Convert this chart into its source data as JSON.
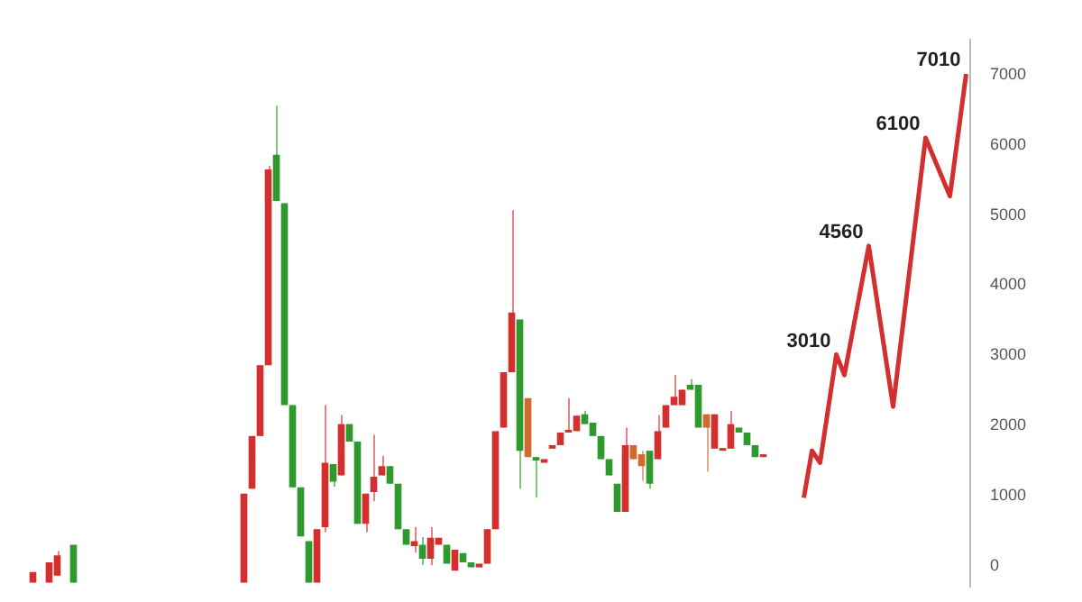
{
  "chart_data": {
    "type": "candlestick",
    "tick_labels": "y",
    "grid": false,
    "legend": false,
    "ylim": [
      -300,
      7500
    ],
    "yticks": [
      0,
      1000,
      2000,
      3000,
      4000,
      5000,
      6000,
      7000
    ],
    "categories": [
      null,
      null,
      null,
      null,
      null,
      null,
      null,
      null,
      null,
      null,
      null,
      null,
      null,
      null,
      null,
      null,
      null,
      null,
      null,
      null,
      null,
      null,
      null,
      null,
      null,
      null,
      null,
      null,
      null,
      null,
      null,
      null,
      null,
      null,
      null,
      null,
      null,
      null,
      null,
      null,
      null,
      null,
      null,
      null,
      null,
      null,
      null,
      null,
      null,
      null,
      null,
      null,
      null,
      null,
      null,
      null,
      null,
      null,
      null,
      null,
      null,
      null,
      null,
      null,
      null,
      null,
      null,
      null,
      null,
      null,
      null,
      null,
      null,
      null,
      null,
      null,
      null,
      null,
      null,
      null,
      null,
      null,
      null,
      null,
      null,
      null,
      null,
      null,
      null,
      null,
      null,
      null,
      null,
      null,
      null,
      null,
      null,
      null,
      null,
      null,
      null,
      null,
      null,
      null,
      null,
      null,
      null,
      null,
      null,
      null,
      null,
      null,
      null,
      null,
      null,
      null
    ],
    "ohlc": [
      [
        -240,
        -90,
        -240,
        -90
      ],
      null,
      [
        -240,
        50,
        -240,
        50
      ],
      [
        -140,
        210,
        -140,
        150
      ],
      null,
      [
        300,
        300,
        -240,
        -240
      ],
      null,
      null,
      null,
      null,
      null,
      null,
      null,
      null,
      null,
      null,
      null,
      null,
      null,
      null,
      null,
      null,
      null,
      null,
      null,
      null,
      [
        -240,
        1030,
        -240,
        1030
      ],
      [
        1100,
        1850,
        1100,
        1850
      ],
      [
        1850,
        2860,
        1850,
        2860
      ],
      [
        2860,
        5700,
        2860,
        5650
      ],
      [
        5860,
        6560,
        5200,
        5200
      ],
      [
        5170,
        5170,
        2290,
        2290
      ],
      [
        2290,
        2290,
        1120,
        1120
      ],
      [
        1120,
        1120,
        420,
        420
      ],
      [
        350,
        350,
        -240,
        -240
      ],
      [
        -240,
        520,
        -240,
        520
      ],
      [
        550,
        2290,
        480,
        1470
      ],
      [
        1450,
        1450,
        1130,
        1200
      ],
      [
        1290,
        2150,
        1290,
        2020
      ],
      [
        2020,
        2020,
        1770,
        1770
      ],
      [
        1770,
        1770,
        600,
        600
      ],
      [
        600,
        1030,
        480,
        1030
      ],
      [
        1050,
        1870,
        920,
        1270
      ],
      [
        1290,
        1570,
        1290,
        1420
      ],
      [
        1420,
        1420,
        1170,
        1170
      ],
      [
        1170,
        1170,
        520,
        520
      ],
      [
        520,
        520,
        300,
        300
      ],
      [
        280,
        550,
        190,
        350
      ],
      [
        300,
        410,
        10,
        100
      ],
      [
        100,
        550,
        10,
        400
      ],
      [
        300,
        400,
        300,
        400
      ],
      [
        300,
        300,
        30,
        30
      ],
      [
        -70,
        230,
        -70,
        230
      ],
      [
        180,
        180,
        50,
        50
      ],
      [
        50,
        50,
        -20,
        -20
      ],
      [
        -20,
        30,
        -20,
        30
      ],
      [
        30,
        520,
        30,
        520
      ],
      [
        520,
        1920,
        520,
        1920
      ],
      [
        1970,
        2760,
        1970,
        2760
      ],
      [
        2760,
        5070,
        2760,
        3610
      ],
      [
        3510,
        3510,
        1100,
        1640
      ],
      [
        1550,
        2390,
        1550,
        2390
      ],
      [
        1550,
        1550,
        970,
        1500
      ],
      [
        1470,
        1520,
        1470,
        1520
      ],
      [
        1670,
        1720,
        1670,
        1720
      ],
      [
        1720,
        1900,
        1720,
        1900
      ],
      [
        1900,
        2390,
        1900,
        1920
      ],
      [
        1920,
        2140,
        1920,
        2140
      ],
      [
        2160,
        2210,
        2020,
        2020
      ],
      [
        2040,
        2040,
        1850,
        1850
      ],
      [
        1850,
        1850,
        1520,
        1520
      ],
      [
        1520,
        1520,
        1290,
        1290
      ],
      [
        1170,
        1170,
        770,
        770
      ],
      [
        770,
        1970,
        770,
        1720
      ],
      [
        1720,
        1720,
        1520,
        1520
      ],
      [
        1590,
        1640,
        1210,
        1420
      ],
      [
        1640,
        1640,
        1100,
        1170
      ],
      [
        1520,
        2150,
        1520,
        1920
      ],
      [
        1970,
        2290,
        1970,
        2290
      ],
      [
        2290,
        2720,
        2290,
        2410
      ],
      [
        2290,
        2510,
        2290,
        2510
      ],
      [
        2580,
        2660,
        2510,
        2510
      ],
      [
        2580,
        2580,
        1970,
        1970
      ],
      [
        2160,
        2160,
        1340,
        1970
      ],
      [
        1670,
        2160,
        1670,
        2160
      ],
      [
        1640,
        1670,
        1640,
        1670
      ],
      [
        1670,
        2210,
        1670,
        2020
      ],
      [
        1970,
        1970,
        1900,
        1900
      ],
      [
        1900,
        1900,
        1720,
        1720
      ],
      [
        1720,
        1720,
        1550,
        1550
      ],
      [
        1550,
        1590,
        1550,
        1590
      ],
      null,
      null,
      null,
      null,
      null,
      null,
      null,
      null,
      null,
      null,
      null,
      null,
      null,
      null,
      null,
      null,
      null,
      null,
      null,
      null,
      null,
      null,
      null,
      null,
      null
    ],
    "colors": [
      "#d32f2f",
      null,
      "#d32f2f",
      "#d32f2f",
      null,
      "#2e9a2e",
      null,
      null,
      null,
      null,
      null,
      null,
      null,
      null,
      null,
      null,
      null,
      null,
      null,
      null,
      null,
      null,
      null,
      null,
      null,
      null,
      "#d32f2f",
      "#d32f2f",
      "#d32f2f",
      "#d32f2f",
      "#2e9a2e",
      "#2e9a2e",
      "#2e9a2e",
      "#2e9a2e",
      "#2e9a2e",
      "#d32f2f",
      "#d32f2f",
      "#2e9a2e",
      "#d32f2f",
      "#2e9a2e",
      "#2e9a2e",
      "#d32f2f",
      "#d32f2f",
      "#d32f2f",
      "#2e9a2e",
      "#2e9a2e",
      "#2e9a2e",
      "#d32f2f",
      "#2e9a2e",
      "#d32f2f",
      "#d32f2f",
      "#2e9a2e",
      "#d32f2f",
      "#2e9a2e",
      "#2e9a2e",
      "#d32f2f",
      "#d32f2f",
      "#d32f2f",
      "#d32f2f",
      "#d32f2f",
      "#2e9a2e",
      "#d2692e",
      "#2e9a2e",
      "#d32f2f",
      "#d32f2f",
      "#d32f2f",
      "#d32f2f",
      "#d32f2f",
      "#2e9a2e",
      "#2e9a2e",
      "#2e9a2e",
      "#2e9a2e",
      "#2e9a2e",
      "#d32f2f",
      "#d2692e",
      "#d2692e",
      "#2e9a2e",
      "#d32f2f",
      "#d32f2f",
      "#d32f2f",
      "#d32f2f",
      "#2e9a2e",
      "#2e9a2e",
      "#d2692e",
      "#d32f2f",
      "#d32f2f",
      "#d32f2f",
      "#2e9a2e",
      "#2e9a2e",
      "#2e9a2e",
      "#d32f2f",
      null,
      null,
      null,
      null,
      null,
      null,
      null,
      null,
      null,
      null,
      null,
      null,
      null,
      null,
      null,
      null,
      null,
      null,
      null,
      null,
      null,
      null,
      null,
      null,
      null
    ],
    "series": [
      {
        "type": "line",
        "color": "#d32f2f",
        "marker": "none",
        "line_style": "solid",
        "values": [
          null,
          null,
          null,
          null,
          null,
          null,
          null,
          null,
          null,
          null,
          null,
          null,
          null,
          null,
          null,
          null,
          null,
          null,
          null,
          null,
          null,
          null,
          null,
          null,
          null,
          null,
          null,
          null,
          null,
          null,
          null,
          null,
          null,
          null,
          null,
          null,
          null,
          null,
          null,
          null,
          null,
          null,
          null,
          null,
          null,
          null,
          null,
          null,
          null,
          null,
          null,
          null,
          null,
          null,
          null,
          null,
          null,
          null,
          null,
          null,
          null,
          null,
          null,
          null,
          null,
          null,
          null,
          null,
          null,
          null,
          null,
          null,
          null,
          null,
          null,
          null,
          null,
          null,
          null,
          null,
          null,
          null,
          null,
          null,
          null,
          null,
          null,
          null,
          null,
          null,
          null,
          null,
          null,
          null,
          null,
          970,
          1640,
          1470,
          null,
          3010,
          2720,
          null,
          null,
          4560,
          null,
          null,
          2270,
          null,
          null,
          null,
          6100,
          null,
          null,
          5270,
          null,
          7010
        ],
        "value_labels": [
          null,
          null,
          null,
          null,
          null,
          null,
          null,
          null,
          null,
          null,
          null,
          null,
          null,
          null,
          null,
          null,
          null,
          null,
          null,
          null,
          null,
          null,
          null,
          null,
          null,
          null,
          null,
          null,
          null,
          null,
          null,
          null,
          null,
          null,
          null,
          null,
          null,
          null,
          null,
          null,
          null,
          null,
          null,
          null,
          null,
          null,
          null,
          null,
          null,
          null,
          null,
          null,
          null,
          null,
          null,
          null,
          null,
          null,
          null,
          null,
          null,
          null,
          null,
          null,
          null,
          null,
          null,
          null,
          null,
          null,
          null,
          null,
          null,
          null,
          null,
          null,
          null,
          null,
          null,
          null,
          null,
          null,
          null,
          null,
          null,
          null,
          null,
          null,
          null,
          null,
          null,
          null,
          null,
          null,
          null,
          null,
          null,
          null,
          null,
          "3010",
          null,
          null,
          null,
          "4560",
          null,
          null,
          null,
          null,
          null,
          null,
          "6100",
          null,
          null,
          null,
          null,
          "7010"
        ]
      }
    ]
  }
}
